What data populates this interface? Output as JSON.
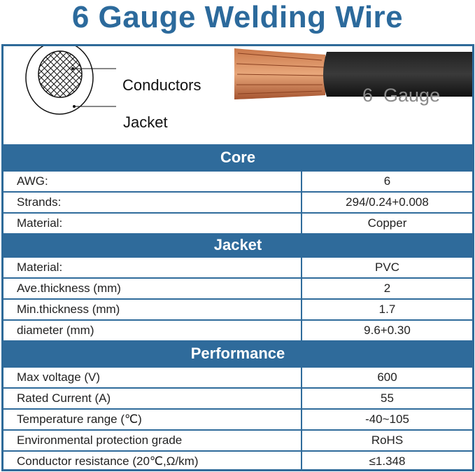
{
  "title": "6 Gauge Welding Wire",
  "diagram": {
    "conductors_label": "Conductors",
    "jacket_label": "Jacket",
    "cable_print": "6  Gauge"
  },
  "colors": {
    "accent": "#2f6b9b",
    "title": "#2c6a9c"
  },
  "sections": [
    {
      "title": "Core",
      "rows": [
        [
          "AWG:",
          "6"
        ],
        [
          "Strands:",
          "294/0.24+0.008"
        ],
        [
          "Material:",
          "Copper"
        ]
      ]
    },
    {
      "title": "Jacket",
      "rows": [
        [
          "Material:",
          "PVC"
        ],
        [
          "Ave.thickness (mm)",
          "2"
        ],
        [
          "Min.thickness (mm)",
          "1.7"
        ],
        [
          "diameter (mm)",
          "9.6+0.30"
        ]
      ]
    },
    {
      "title": "Performance",
      "rows": [
        [
          "Max voltage (V)",
          "600"
        ],
        [
          "Rated Current (A)",
          "55"
        ],
        [
          "Temperature range (℃)",
          "-40~105"
        ],
        [
          "Environmental protection grade",
          "RoHS"
        ],
        [
          "Conductor resistance (20℃,Ω/km)",
          "≤1.348"
        ]
      ]
    }
  ]
}
